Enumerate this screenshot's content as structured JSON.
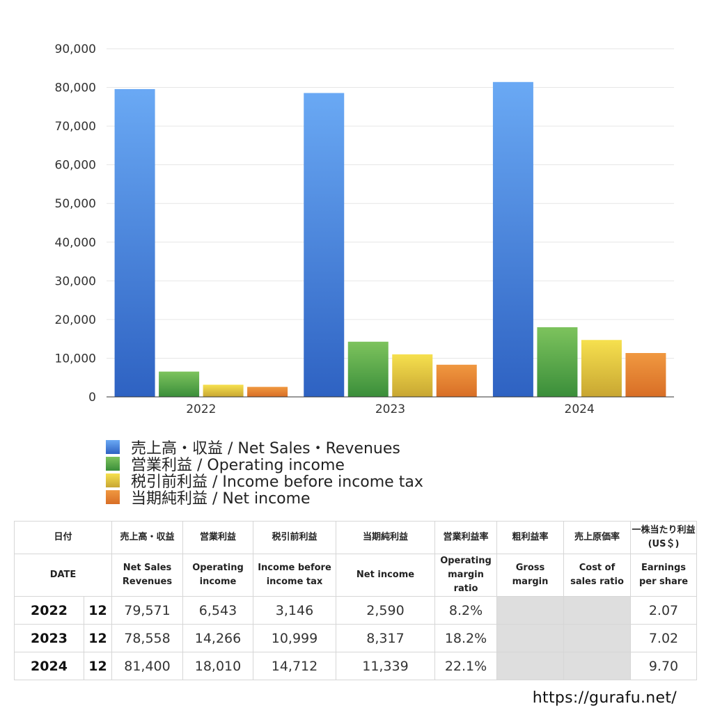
{
  "chart_data": {
    "type": "bar",
    "categories": [
      "2022",
      "2023",
      "2024"
    ],
    "ylim": [
      0,
      90000
    ],
    "yticks": [
      "0",
      "10,000",
      "20,000",
      "30,000",
      "40,000",
      "50,000",
      "60,000",
      "70,000",
      "80,000",
      "90,000"
    ],
    "ytick_values": [
      0,
      10000,
      20000,
      30000,
      40000,
      50000,
      60000,
      70000,
      80000,
      90000
    ],
    "grid": true,
    "legend_position": "bottom",
    "series": [
      {
        "name": "売上高・収益 / Net Sales・Revenues",
        "values": [
          79571,
          78558,
          81400
        ],
        "color_top": "#6aa9f4",
        "color_bottom": "#2e62c2"
      },
      {
        "name": "営業利益 / Operating income",
        "values": [
          6543,
          14266,
          18010
        ],
        "color_top": "#7dc35d",
        "color_bottom": "#3a8e3a"
      },
      {
        "name": "税引前利益 / Income before income tax",
        "values": [
          3146,
          10999,
          14712
        ],
        "color_top": "#f6e04e",
        "color_bottom": "#c8a632"
      },
      {
        "name": "当期純利益 / Net income",
        "values": [
          2590,
          8317,
          11339
        ],
        "color_top": "#f09840",
        "color_bottom": "#d86e26"
      }
    ]
  },
  "table": {
    "header_jp": {
      "date": "日付",
      "sales": "売上高・収益",
      "operating": "営業利益",
      "pretax": "税引前利益",
      "net": "当期純利益",
      "op_margin": "営業利益率",
      "gross": "粗利益率",
      "cost": "売上原価率",
      "eps_line1": "一株当たり利益",
      "eps_line2": "(US＄)"
    },
    "header_en": {
      "date": "DATE",
      "sales_line1": "Net Sales",
      "sales_line2": "Revenues",
      "operating_line1": "Operating",
      "operating_line2": "income",
      "pretax_line1": "Income before",
      "pretax_line2": "income tax",
      "net": "Net income",
      "op_margin_line1": "Operating",
      "op_margin_line2": "margin",
      "op_margin_line3": "ratio",
      "gross_line1": "Gross",
      "gross_line2": "margin",
      "cost_line1": "Cost of",
      "cost_line2": "sales ratio",
      "eps_line1": "Earnings",
      "eps_line2": "per share"
    },
    "rows": [
      {
        "year": "2022",
        "month": "12",
        "sales": "79,571",
        "operating": "6,543",
        "pretax": "3,146",
        "net": "2,590",
        "op_margin": "8.2%",
        "gross": "",
        "cost": "",
        "eps": "2.07"
      },
      {
        "year": "2023",
        "month": "12",
        "sales": "78,558",
        "operating": "14,266",
        "pretax": "10,999",
        "net": "8,317",
        "op_margin": "18.2%",
        "gross": "",
        "cost": "",
        "eps": "7.02"
      },
      {
        "year": "2024",
        "month": "12",
        "sales": "81,400",
        "operating": "18,010",
        "pretax": "14,712",
        "net": "11,339",
        "op_margin": "22.1%",
        "gross": "",
        "cost": "",
        "eps": "9.70"
      }
    ]
  },
  "footer": {
    "url": "https://gurafu.net/"
  }
}
